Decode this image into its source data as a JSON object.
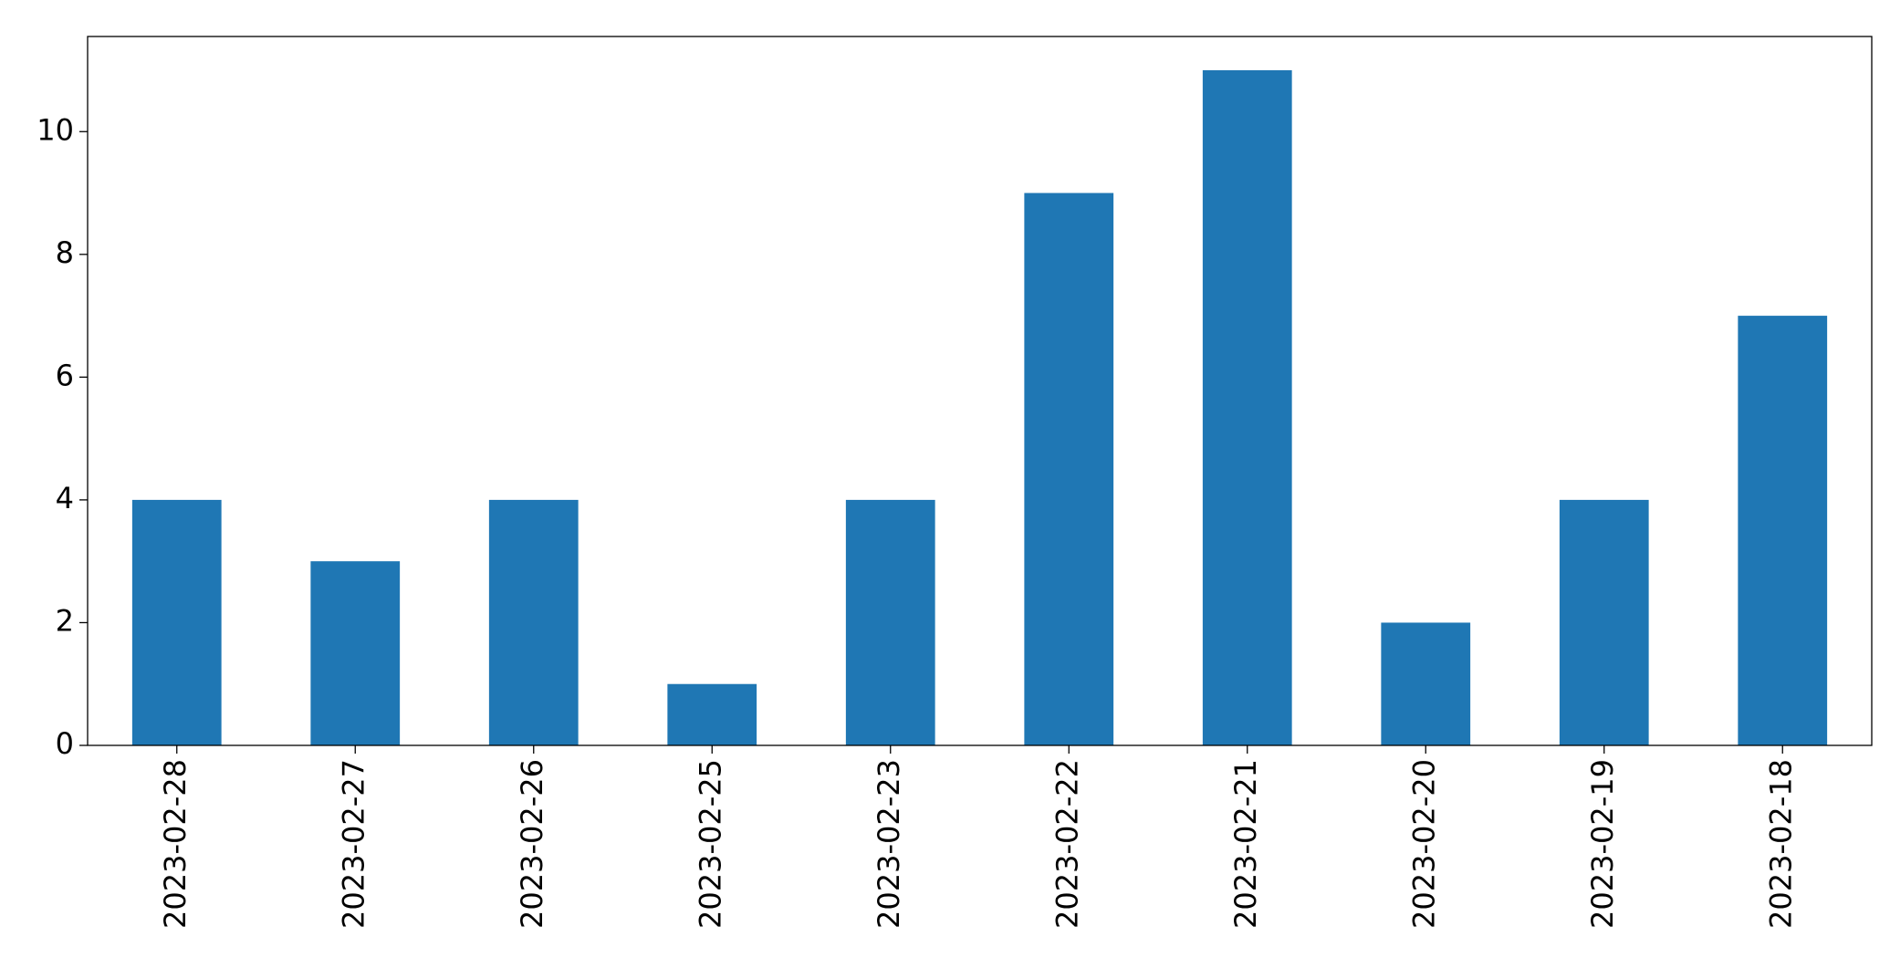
{
  "chart_data": {
    "type": "bar",
    "categories": [
      "2023-02-28",
      "2023-02-27",
      "2023-02-26",
      "2023-02-25",
      "2023-02-23",
      "2023-02-22",
      "2023-02-21",
      "2023-02-20",
      "2023-02-19",
      "2023-02-18"
    ],
    "values": [
      4,
      3,
      4,
      1,
      4,
      9,
      11,
      2,
      4,
      7
    ],
    "color": "#1f77b4",
    "ylim": [
      0,
      11.55
    ],
    "yticks": [
      0,
      2,
      4,
      6,
      8,
      10
    ],
    "grid": false
  }
}
